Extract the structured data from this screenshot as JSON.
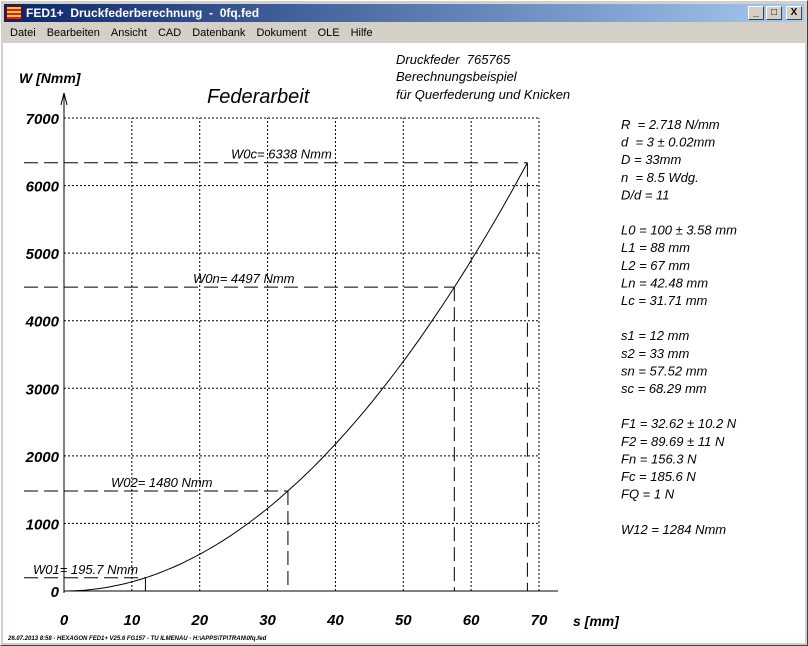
{
  "window": {
    "title": "FED1+  Druckfederberechnung  -  0fq.fed",
    "minimize": "_",
    "maximize": "□",
    "close": "X"
  },
  "menu": [
    "Datei",
    "Bearbeiten",
    "Ansicht",
    "CAD",
    "Datenbank",
    "Dokument",
    "OLE",
    "Hilfe"
  ],
  "header": {
    "line1": "Druckfeder  765765",
    "line2": "Berechnungsbeispiel",
    "line3": "für Querfederung und Knicken"
  },
  "params": [
    "R  = 2.718 N/mm",
    "d  = 3 ± 0.02mm",
    "D = 33mm",
    "n  = 8.5 Wdg.",
    "D/d = 11",
    "",
    "L0 = 100 ± 3.58 mm",
    "L1 = 88 mm",
    "L2 = 67 mm",
    "Ln = 42.48 mm",
    "Lc = 31.71 mm",
    "",
    "s1 = 12 mm",
    "s2 = 33 mm",
    "sn = 57.52 mm",
    "sc = 68.29 mm",
    "",
    "F1 = 32.62 ± 10.2 N",
    "F2 = 89.69 ± 11 N",
    "Fn = 156.3 N",
    "Fc = 185.6 N",
    "FQ = 1 N",
    "",
    "W12 = 1284 Nmm"
  ],
  "footer": "26.07.2013 8:58 - HEXAGON FED1+ V25.6 FG157 - TU ILMENAU - H:\\APPS\\TP\\TRAN\\0fq.fed",
  "chart_data": {
    "type": "line",
    "title": "Federarbeit",
    "xlabel": "s [mm]",
    "ylabel": "W [Nmm]",
    "xlim": [
      0,
      70
    ],
    "ylim": [
      0,
      7000
    ],
    "xticks": [
      0,
      10,
      20,
      30,
      40,
      50,
      60,
      70
    ],
    "yticks": [
      0,
      1000,
      2000,
      3000,
      4000,
      5000,
      6000,
      7000
    ],
    "grid": true,
    "curve": {
      "formula": "W = R/2 * s^2",
      "R": 2.718,
      "s_range": [
        0,
        68.29
      ]
    },
    "markers": [
      {
        "label": "W01= 195.7 Nmm",
        "s": 12,
        "W": 195.7
      },
      {
        "label": "W02= 1480 Nmm",
        "s": 33,
        "W": 1480
      },
      {
        "label": "W0n= 4497 Nmm",
        "s": 57.52,
        "W": 4497
      },
      {
        "label": "W0c= 6338 Nmm",
        "s": 68.29,
        "W": 6338
      }
    ]
  }
}
